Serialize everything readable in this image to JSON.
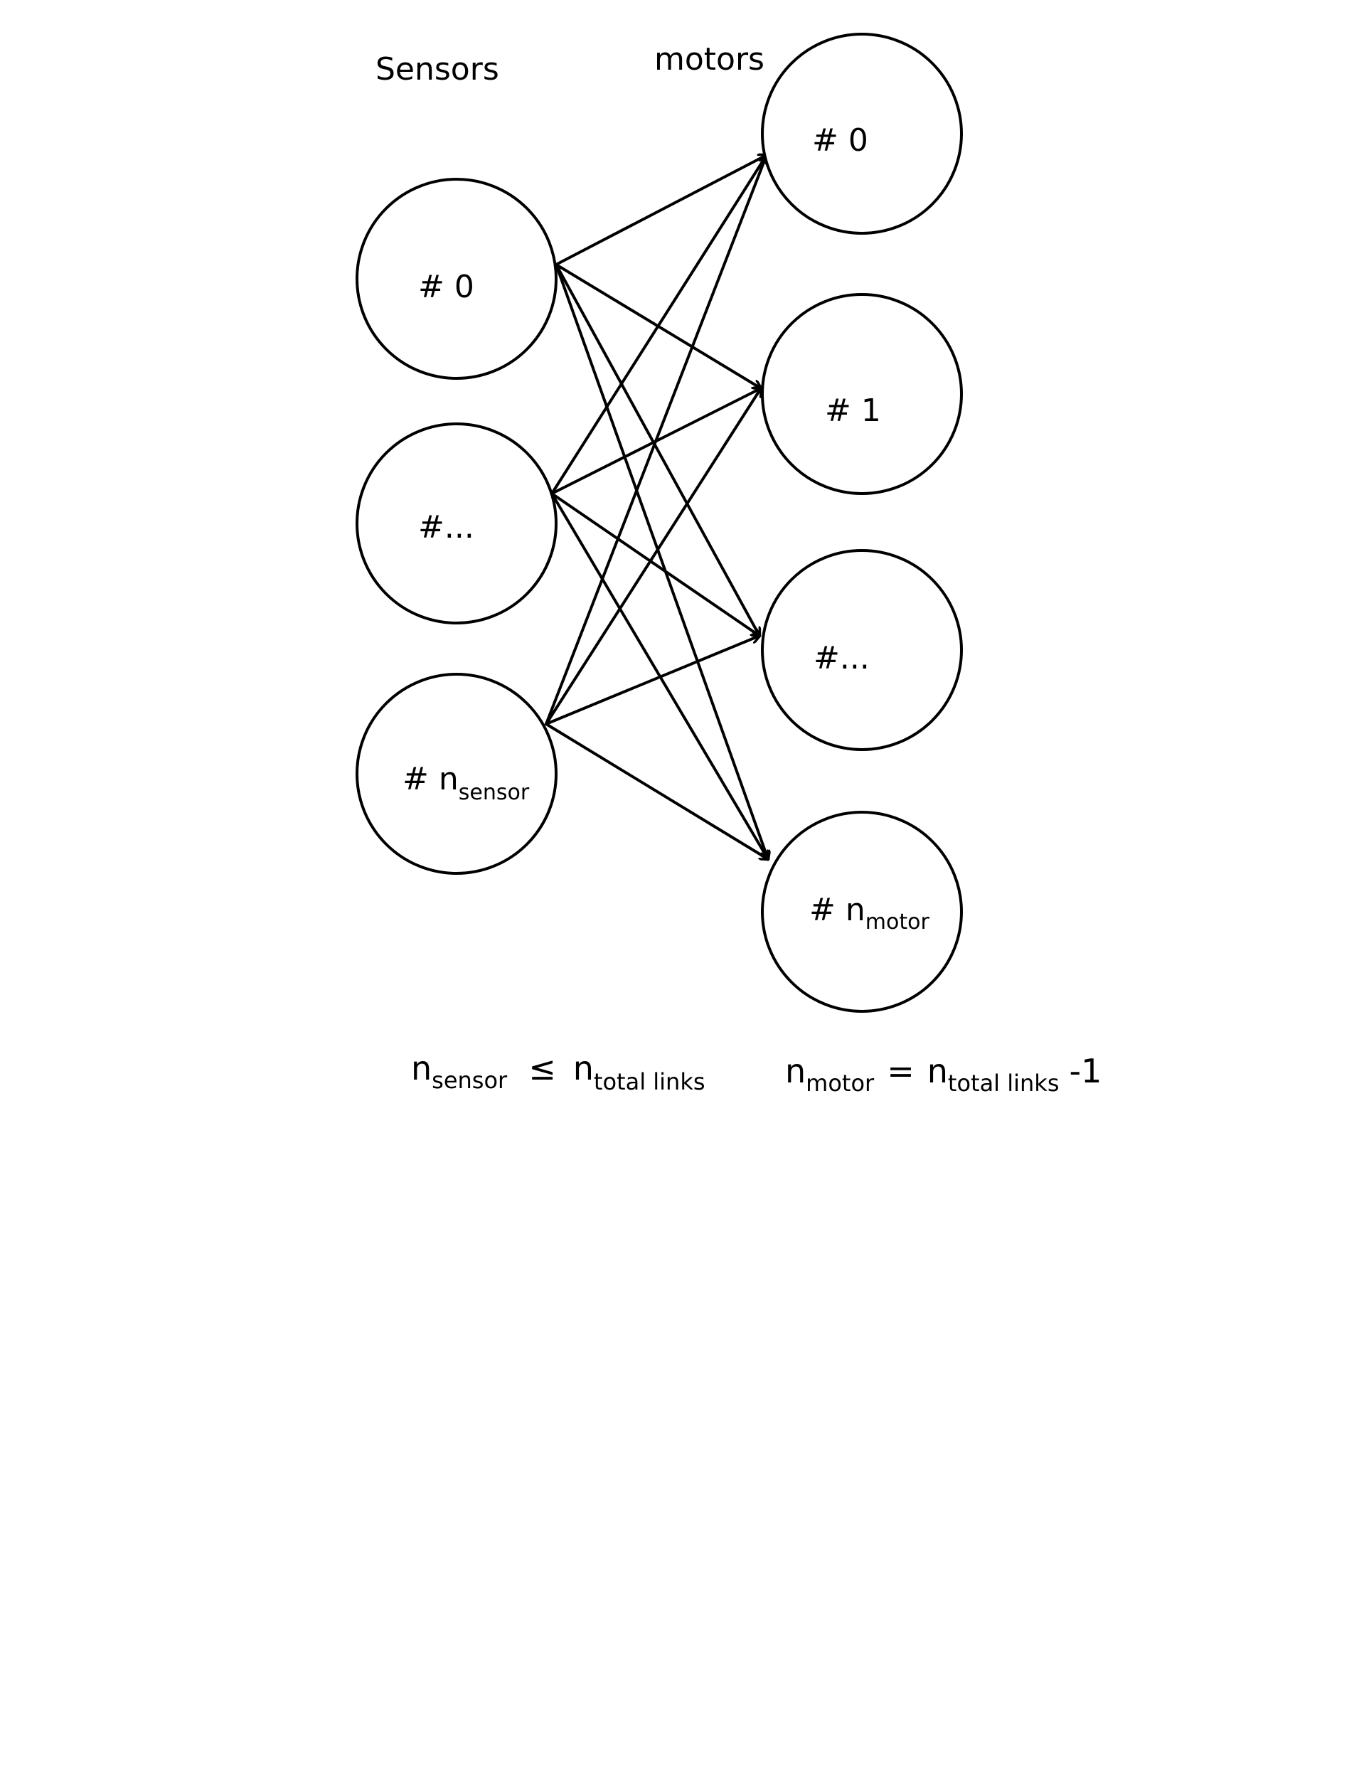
{
  "columns": {
    "sensors_title": "Sensors",
    "motors_title": "motors"
  },
  "sensors": [
    {
      "prefix": "#",
      "value": "0",
      "subscript": ""
    },
    {
      "prefix": "#",
      "value": "...",
      "subscript": ""
    },
    {
      "prefix": "#",
      "value": "n",
      "subscript": "sensor"
    }
  ],
  "motors": [
    {
      "prefix": "#",
      "value": "0",
      "subscript": ""
    },
    {
      "prefix": "#",
      "value": "1",
      "subscript": ""
    },
    {
      "prefix": "#",
      "value": "...",
      "subscript": ""
    },
    {
      "prefix": "#",
      "value": "n",
      "subscript": "motor"
    }
  ],
  "edges": [
    {
      "from": 0,
      "to": 0
    },
    {
      "from": 0,
      "to": 1
    },
    {
      "from": 0,
      "to": 2
    },
    {
      "from": 0,
      "to": 3
    },
    {
      "from": 1,
      "to": 0
    },
    {
      "from": 1,
      "to": 1
    },
    {
      "from": 1,
      "to": 2
    },
    {
      "from": 1,
      "to": 3
    },
    {
      "from": 2,
      "to": 0
    },
    {
      "from": 2,
      "to": 1
    },
    {
      "from": 2,
      "to": 2
    },
    {
      "from": 2,
      "to": 3
    }
  ],
  "formulas": {
    "left": {
      "lhs_symbol": "n",
      "lhs_sub": "sensor",
      "operator": "≤",
      "rhs_symbol": "n",
      "rhs_sub": "total links",
      "suffix": ""
    },
    "right": {
      "lhs_symbol": "n",
      "lhs_sub": "motor",
      "operator": "=",
      "rhs_symbol": "n",
      "rhs_sub": "total links",
      "suffix": "-1"
    }
  }
}
